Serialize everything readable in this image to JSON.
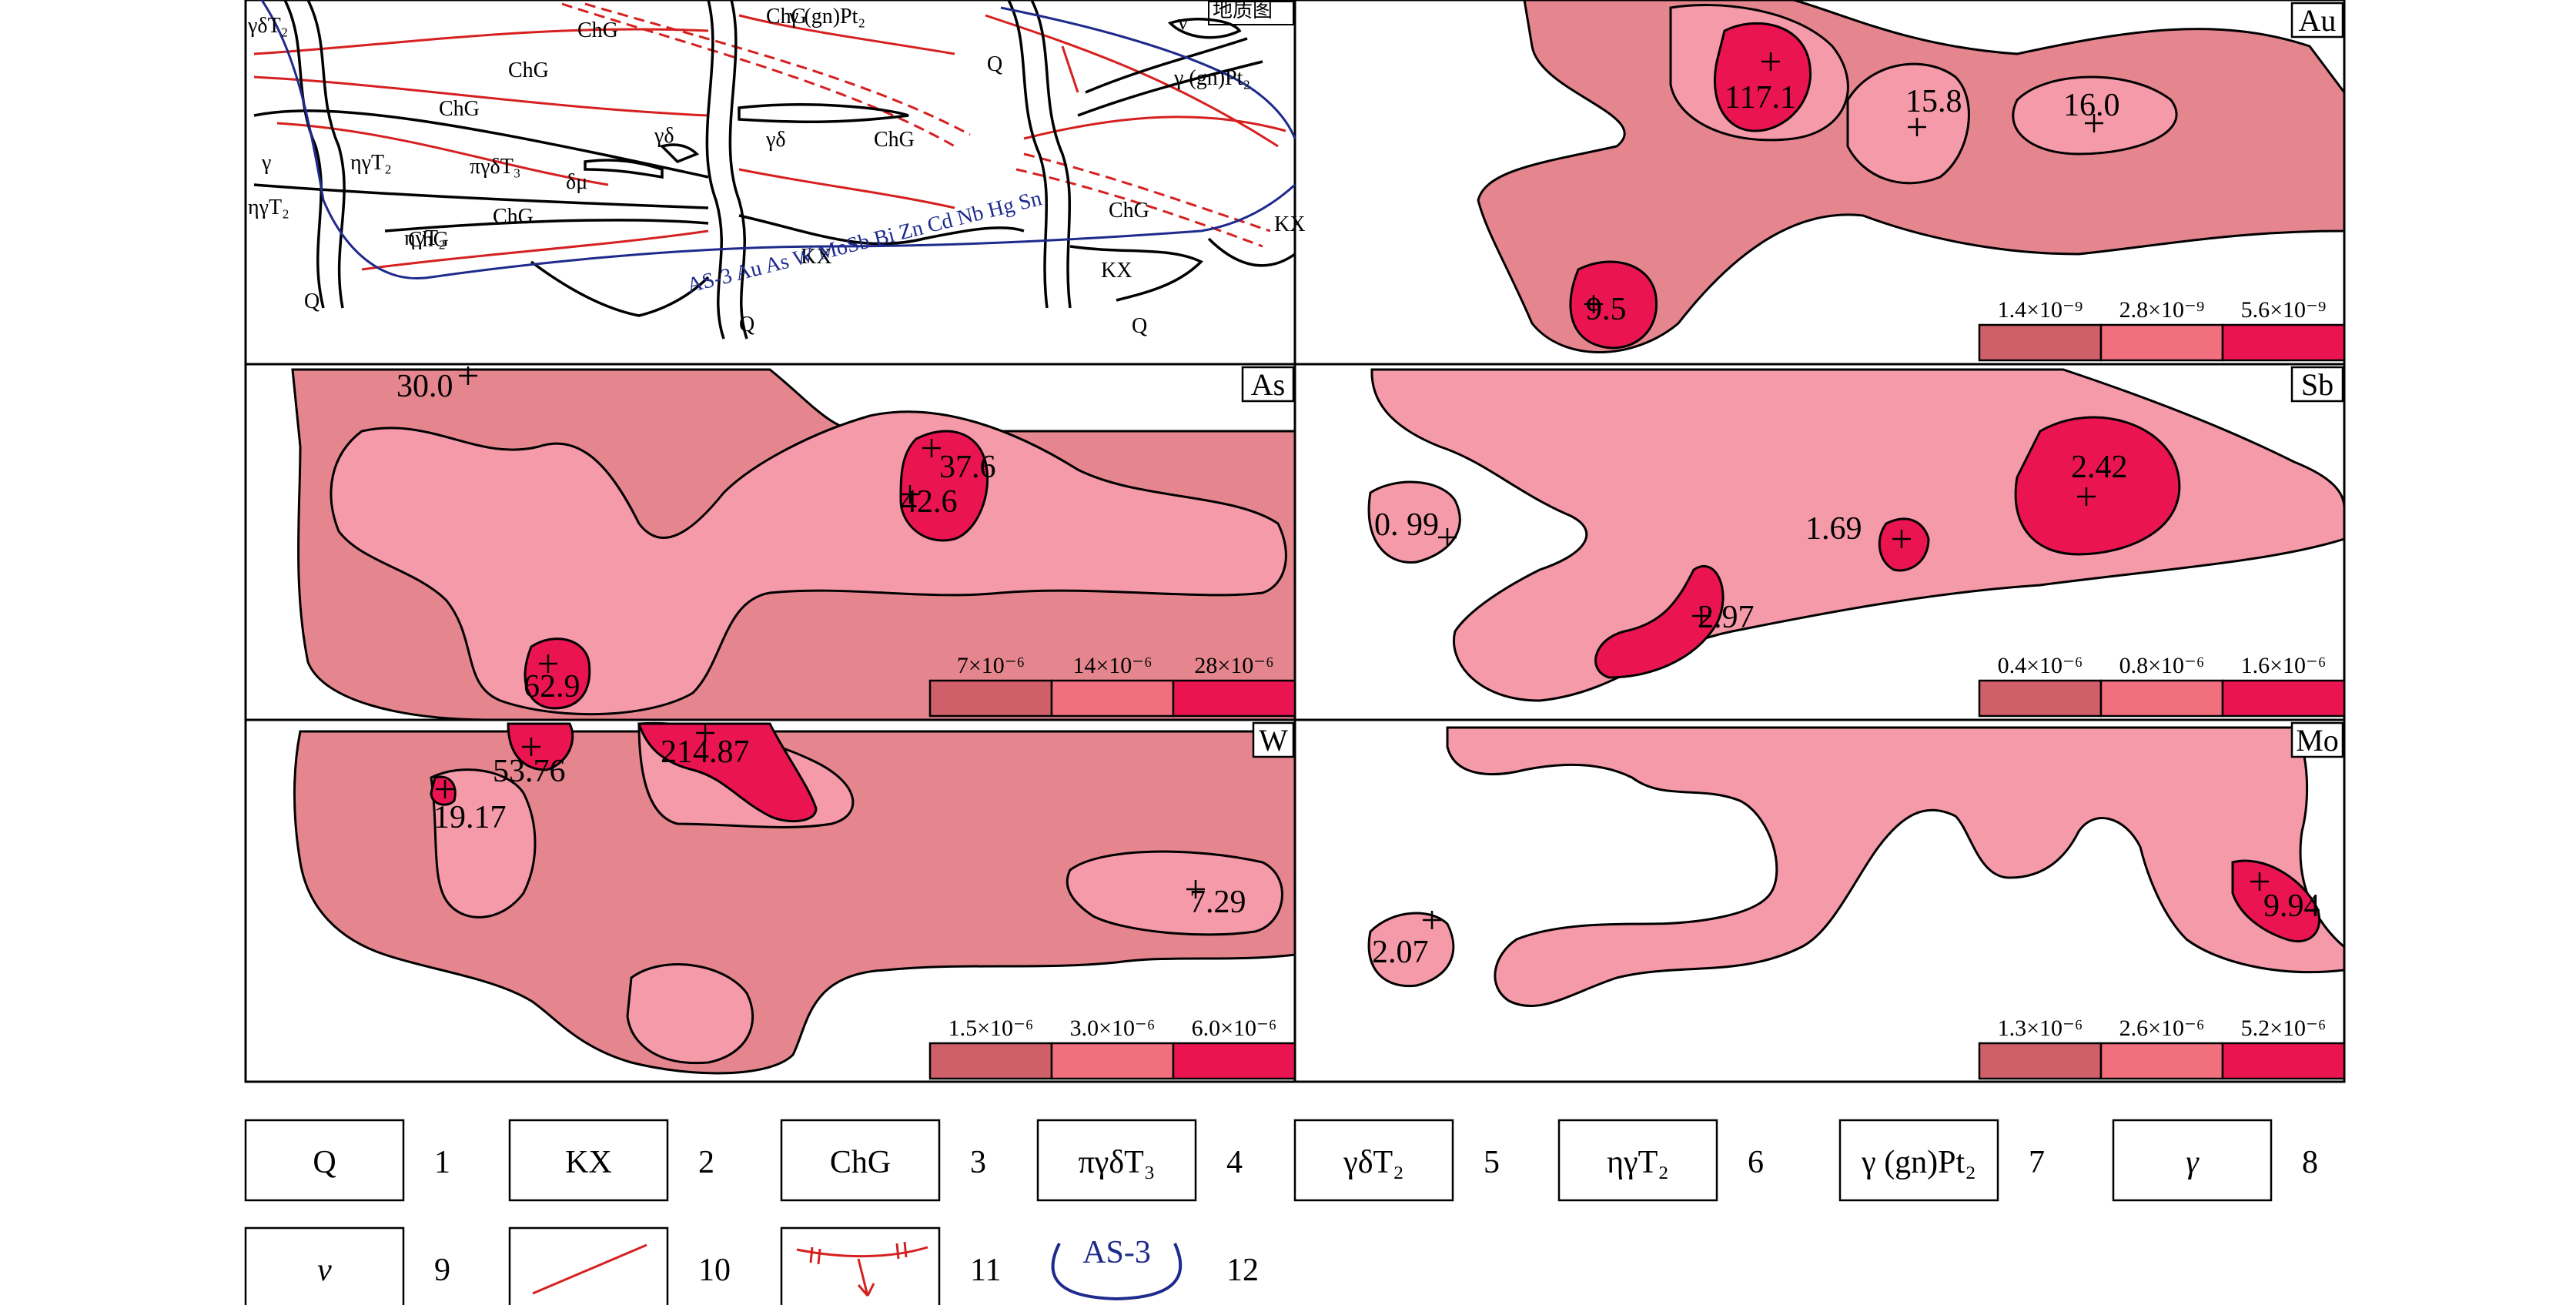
{
  "geo_map": {
    "title": "地质图",
    "labels": [
      "γδT₂",
      "ChG",
      "ChG",
      "γ (gn)Pt₂",
      "Q",
      "ν",
      "ChG",
      "γ (gn)Pt₂",
      "ChG",
      "γδ",
      "γδ",
      "ChG",
      "γ",
      "ηγT₂",
      "πγδT₃",
      "δμ",
      "ηγT₂",
      "ChG",
      "ChG",
      "ηγT₂",
      "KX",
      "KX",
      "KX",
      "ChG",
      "Q",
      "Q",
      "Q"
    ],
    "profile_label": "AS-3 Au As W MoSb Bi Zn Cd Nb Hg Sn"
  },
  "panels": [
    {
      "element": "Au",
      "values": [
        "117.1",
        "15.8",
        "16.0",
        "9.5"
      ],
      "scale": [
        "1.4×10⁻⁹",
        "2.8×10⁻⁹",
        "5.6×10⁻⁹"
      ]
    },
    {
      "element": "As",
      "values": [
        "30.0",
        "37.6",
        "42.6",
        "62.9"
      ],
      "scale": [
        "7×10⁻⁶",
        "14×10⁻⁶",
        "28×10⁻⁶"
      ]
    },
    {
      "element": "Sb",
      "values": [
        "0. 99",
        "1.69",
        "2.42",
        "2.97"
      ],
      "scale": [
        "0.4×10⁻⁶",
        "0.8×10⁻⁶",
        "1.6×10⁻⁶"
      ]
    },
    {
      "element": "W",
      "values": [
        "53.76",
        "214.87",
        "19.17",
        "7.29"
      ],
      "scale": [
        "1.5×10⁻⁶",
        "3.0×10⁻⁶",
        "6.0×10⁻⁶"
      ]
    },
    {
      "element": "Mo",
      "values": [
        "2.07",
        "9.94"
      ],
      "scale": [
        "1.3×10⁻⁶",
        "2.6×10⁻⁶",
        "5.2×10⁻⁶"
      ]
    }
  ],
  "legend": [
    {
      "symbol": "Q",
      "num": "1"
    },
    {
      "symbol": "KX",
      "num": "2"
    },
    {
      "symbol": "ChG",
      "num": "3"
    },
    {
      "symbol": "πγδT₃",
      "num": "4"
    },
    {
      "symbol": "γδT₂",
      "num": "5"
    },
    {
      "symbol": "ηγT₂",
      "num": "6"
    },
    {
      "symbol": "γ (gn)Pt₂",
      "num": "7"
    },
    {
      "symbol": "γ",
      "num": "8"
    },
    {
      "symbol": "ν",
      "num": "9"
    },
    {
      "symbol": "",
      "num": "10"
    },
    {
      "symbol": "",
      "num": "11"
    },
    {
      "symbol": "AS-3",
      "num": "12"
    }
  ],
  "colors": {
    "low": "#e5868f",
    "mid": "#f59aa8",
    "high": "#ea1550",
    "scale_low": "#cf5f68",
    "scale_mid": "#f2707e",
    "scale_high": "#ea1550",
    "fault": "#d62020",
    "profile": "#1e2a8c"
  }
}
